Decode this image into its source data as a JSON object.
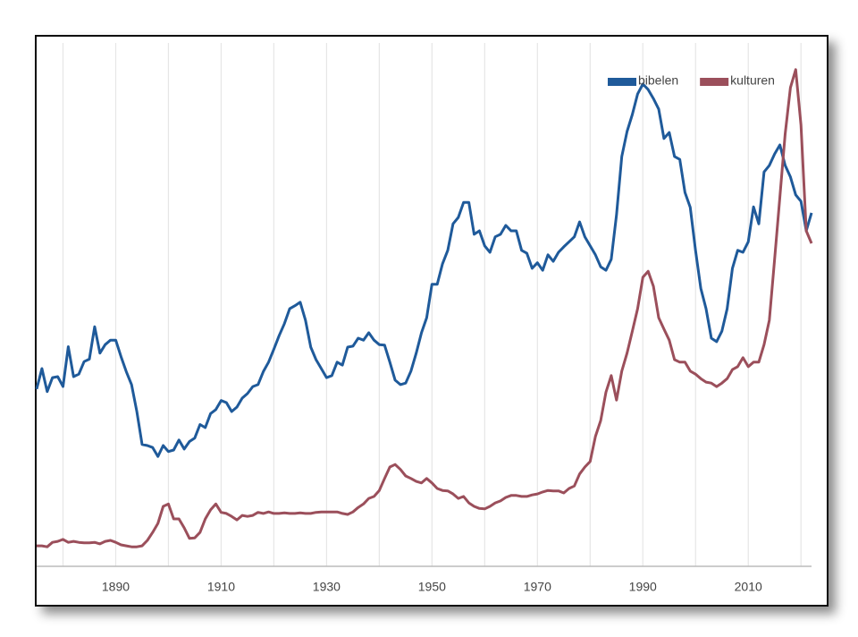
{
  "chart_data": {
    "type": "line",
    "x": [
      1875,
      1876,
      1877,
      1878,
      1879,
      1880,
      1881,
      1882,
      1883,
      1884,
      1885,
      1886,
      1887,
      1888,
      1889,
      1890,
      1891,
      1892,
      1893,
      1894,
      1895,
      1896,
      1897,
      1898,
      1899,
      1900,
      1901,
      1902,
      1903,
      1904,
      1905,
      1906,
      1907,
      1908,
      1909,
      1910,
      1911,
      1912,
      1913,
      1914,
      1915,
      1916,
      1917,
      1918,
      1919,
      1920,
      1921,
      1922,
      1923,
      1924,
      1925,
      1926,
      1927,
      1928,
      1929,
      1930,
      1931,
      1932,
      1933,
      1934,
      1935,
      1936,
      1937,
      1938,
      1939,
      1940,
      1941,
      1942,
      1943,
      1944,
      1945,
      1946,
      1947,
      1948,
      1949,
      1950,
      1951,
      1952,
      1953,
      1954,
      1955,
      1956,
      1957,
      1958,
      1959,
      1960,
      1961,
      1962,
      1963,
      1964,
      1965,
      1966,
      1967,
      1968,
      1969,
      1970,
      1971,
      1972,
      1973,
      1974,
      1975,
      1976,
      1977,
      1978,
      1979,
      1980,
      1981,
      1982,
      1983,
      1984,
      1985,
      1986,
      1987,
      1988,
      1989,
      1990,
      1991,
      1992,
      1993,
      1994,
      1995,
      1996,
      1997,
      1998,
      1999,
      2000,
      2001,
      2002,
      2003,
      2004,
      2005,
      2006,
      2007,
      2008,
      2009,
      2010,
      2011,
      2012,
      2013,
      2014,
      2015,
      2016,
      2017,
      2018,
      2019,
      2020,
      2021,
      2022
    ],
    "series": [
      {
        "name": "bibelen",
        "color": "#1f5a9a",
        "values": [
          35.5,
          39.6,
          35,
          37.8,
          38,
          36,
          44,
          38,
          38.5,
          41,
          41.5,
          48,
          42.7,
          44.4,
          45.3,
          45.3,
          42,
          39,
          36.4,
          31,
          24.4,
          24.2,
          23.8,
          22,
          24.2,
          23,
          23.3,
          25.3,
          23.5,
          25,
          25.7,
          28.4,
          27.8,
          30.6,
          31.4,
          33.2,
          32.8,
          31,
          31.9,
          33.7,
          34.6,
          36,
          36.4,
          39,
          40.9,
          43.5,
          46.2,
          48.6,
          51.6,
          52.2,
          52.9,
          49.3,
          43.9,
          41.4,
          39.6,
          37.8,
          38.2,
          40.9,
          40.3,
          43.9,
          44.1,
          45.7,
          45.3,
          46.8,
          45.3,
          44.4,
          44.3,
          40.9,
          37.3,
          36.4,
          36.7,
          39.1,
          42.7,
          46.8,
          49.8,
          56.5,
          56.5,
          60.6,
          63.3,
          68.6,
          69.9,
          72.9,
          72.9,
          66.5,
          67.2,
          64.2,
          62.9,
          66,
          66.5,
          68.3,
          67.2,
          67.2,
          63.3,
          62.7,
          59.7,
          60.8,
          59.3,
          62.4,
          61.1,
          62.9,
          64,
          65,
          66,
          69,
          66,
          64.2,
          62.4,
          60,
          59.3,
          61.5,
          70.4,
          82.1,
          87.1,
          90.5,
          94.6,
          96.6,
          95.5,
          93.7,
          91.6,
          85.7,
          86.9,
          82.1,
          81.5,
          74.9,
          71.9,
          63.3,
          55.7,
          51.6,
          45.7,
          45,
          47.1,
          51.6,
          59.7,
          63.3,
          62.9,
          65,
          72,
          68.6,
          79,
          80.3,
          82.6,
          84.4,
          80.3,
          78,
          74.4,
          73.1,
          67.2,
          70.8
        ]
      },
      {
        "name": "kulturen",
        "color": "#9b4f5b",
        "values": [
          4.1,
          4.1,
          3.9,
          4.8,
          5,
          5.4,
          4.8,
          5,
          4.8,
          4.7,
          4.7,
          4.8,
          4.5,
          5,
          5.2,
          4.8,
          4.3,
          4.1,
          3.9,
          3.9,
          4.1,
          5.2,
          6.8,
          8.6,
          12,
          12.5,
          9.5,
          9.5,
          7.7,
          5.6,
          5.7,
          6.8,
          9.5,
          11.3,
          12.5,
          10.8,
          10.6,
          10,
          9.3,
          10.2,
          10,
          10.2,
          10.8,
          10.6,
          10.9,
          10.6,
          10.6,
          10.7,
          10.6,
          10.6,
          10.7,
          10.6,
          10.6,
          10.8,
          10.9,
          10.9,
          10.9,
          10.9,
          10.6,
          10.4,
          10.9,
          11.8,
          12.5,
          13.6,
          14,
          15.2,
          17.6,
          19.9,
          20.4,
          19.4,
          18.1,
          17.6,
          17,
          16.7,
          17.6,
          16.7,
          15.6,
          15.2,
          15.1,
          14.5,
          13.6,
          14,
          12.7,
          12,
          11.6,
          11.5,
          12,
          12.7,
          13.1,
          13.8,
          14.2,
          14.2,
          14,
          14,
          14.3,
          14.5,
          14.9,
          15.2,
          15.1,
          15.1,
          14.7,
          15.6,
          16.1,
          18.5,
          19.9,
          21,
          26,
          29.2,
          34.9,
          38.2,
          33.3,
          39.1,
          42.7,
          47.1,
          51.6,
          57.9,
          59.1,
          56.1,
          49.8,
          47.5,
          45.3,
          41.4,
          40.9,
          40.9,
          39.1,
          38.5,
          37.6,
          36.9,
          36.7,
          36,
          36.7,
          37.6,
          39.4,
          40,
          41.8,
          40,
          40.9,
          40.9,
          44.4,
          49.3,
          61.5,
          74,
          86.6,
          95.9,
          99.5,
          88.4,
          67.2,
          64.7
        ]
      }
    ],
    "xlim": [
      1875,
      2022
    ],
    "xticks": [
      1890,
      1910,
      1930,
      1950,
      1970,
      1990,
      2010
    ],
    "xgrid": [
      1880,
      1890,
      1900,
      1910,
      1920,
      1930,
      1940,
      1950,
      1960,
      1970,
      1980,
      1990,
      2000,
      2010,
      2020
    ],
    "ylim": [
      0,
      100
    ],
    "grid": true,
    "legend": "upper right"
  }
}
